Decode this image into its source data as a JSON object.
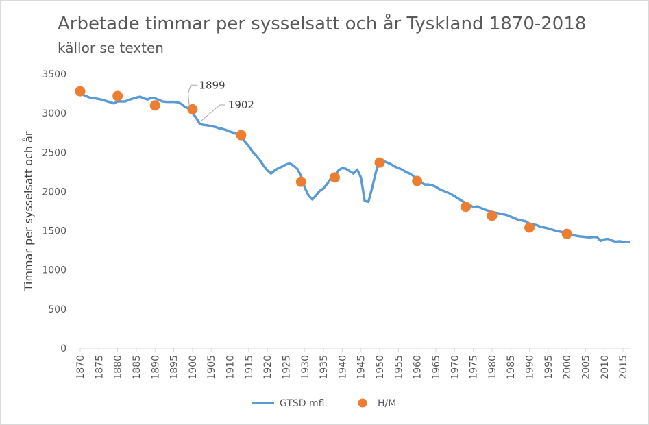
{
  "chart_data": {
    "type": "line",
    "title": "Arbetade timmar per sysselsatt och år Tyskland 1870-2018",
    "subtitle": "källor se texten",
    "xlabel": "",
    "ylabel": "Timmar per sysselsatt och år",
    "xlim": [
      1870,
      2017
    ],
    "ylim": [
      0,
      3500
    ],
    "grid": false,
    "legend_position": "bottom",
    "x_ticks": [
      1870,
      1875,
      1880,
      1885,
      1890,
      1895,
      1900,
      1905,
      1910,
      1915,
      1920,
      1925,
      1930,
      1935,
      1940,
      1945,
      1950,
      1955,
      1960,
      1965,
      1970,
      1975,
      1980,
      1985,
      1990,
      1995,
      2000,
      2005,
      2010,
      2015
    ],
    "y_ticks": [
      0,
      500,
      1000,
      1500,
      2000,
      2500,
      3000,
      3500
    ],
    "annotations": [
      {
        "text": "1899",
        "x": 1899,
        "y": 3060
      },
      {
        "text": "1902",
        "x": 1902,
        "y": 2870
      }
    ],
    "colors": {
      "gtsd": "#5b9bd5",
      "hm": "#ed7d31"
    },
    "series": [
      {
        "name": "GTSD mfl.",
        "kind": "line",
        "points": [
          [
            1870,
            3260
          ],
          [
            1871,
            3230
          ],
          [
            1872,
            3210
          ],
          [
            1873,
            3190
          ],
          [
            1874,
            3190
          ],
          [
            1875,
            3180
          ],
          [
            1876,
            3170
          ],
          [
            1877,
            3155
          ],
          [
            1878,
            3140
          ],
          [
            1879,
            3125
          ],
          [
            1880,
            3150
          ],
          [
            1881,
            3150
          ],
          [
            1882,
            3150
          ],
          [
            1883,
            3170
          ],
          [
            1884,
            3185
          ],
          [
            1885,
            3200
          ],
          [
            1886,
            3210
          ],
          [
            1887,
            3190
          ],
          [
            1888,
            3175
          ],
          [
            1889,
            3195
          ],
          [
            1890,
            3190
          ],
          [
            1891,
            3170
          ],
          [
            1892,
            3150
          ],
          [
            1893,
            3145
          ],
          [
            1894,
            3145
          ],
          [
            1895,
            3145
          ],
          [
            1896,
            3140
          ],
          [
            1897,
            3120
          ],
          [
            1898,
            3080
          ],
          [
            1899,
            3060
          ],
          [
            1900,
            3000
          ],
          [
            1901,
            2940
          ],
          [
            1902,
            2860
          ],
          [
            1903,
            2850
          ],
          [
            1904,
            2845
          ],
          [
            1905,
            2835
          ],
          [
            1906,
            2825
          ],
          [
            1907,
            2810
          ],
          [
            1908,
            2800
          ],
          [
            1909,
            2785
          ],
          [
            1910,
            2765
          ],
          [
            1911,
            2750
          ],
          [
            1912,
            2730
          ],
          [
            1913,
            2700
          ],
          [
            1914,
            2640
          ],
          [
            1915,
            2580
          ],
          [
            1916,
            2510
          ],
          [
            1917,
            2460
          ],
          [
            1918,
            2400
          ],
          [
            1919,
            2330
          ],
          [
            1920,
            2270
          ],
          [
            1921,
            2230
          ],
          [
            1922,
            2270
          ],
          [
            1923,
            2300
          ],
          [
            1924,
            2320
          ],
          [
            1925,
            2345
          ],
          [
            1926,
            2360
          ],
          [
            1927,
            2330
          ],
          [
            1928,
            2290
          ],
          [
            1929,
            2200
          ],
          [
            1930,
            2050
          ],
          [
            1931,
            1950
          ],
          [
            1932,
            1900
          ],
          [
            1933,
            1950
          ],
          [
            1934,
            2010
          ],
          [
            1935,
            2040
          ],
          [
            1936,
            2100
          ],
          [
            1937,
            2170
          ],
          [
            1938,
            2190
          ],
          [
            1939,
            2270
          ],
          [
            1940,
            2300
          ],
          [
            1941,
            2290
          ],
          [
            1942,
            2260
          ],
          [
            1943,
            2230
          ],
          [
            1944,
            2280
          ],
          [
            1945,
            2180
          ],
          [
            1946,
            1880
          ],
          [
            1947,
            1870
          ],
          [
            1948,
            2050
          ],
          [
            1949,
            2250
          ],
          [
            1950,
            2400
          ],
          [
            1951,
            2390
          ],
          [
            1952,
            2370
          ],
          [
            1953,
            2350
          ],
          [
            1954,
            2320
          ],
          [
            1955,
            2300
          ],
          [
            1956,
            2280
          ],
          [
            1957,
            2250
          ],
          [
            1958,
            2230
          ],
          [
            1959,
            2200
          ],
          [
            1960,
            2160
          ],
          [
            1961,
            2120
          ],
          [
            1962,
            2090
          ],
          [
            1963,
            2090
          ],
          [
            1964,
            2080
          ],
          [
            1965,
            2060
          ],
          [
            1966,
            2030
          ],
          [
            1967,
            2010
          ],
          [
            1968,
            1990
          ],
          [
            1969,
            1970
          ],
          [
            1970,
            1940
          ],
          [
            1971,
            1910
          ],
          [
            1972,
            1880
          ],
          [
            1973,
            1850
          ],
          [
            1974,
            1825
          ],
          [
            1975,
            1800
          ],
          [
            1976,
            1810
          ],
          [
            1977,
            1790
          ],
          [
            1978,
            1770
          ],
          [
            1979,
            1755
          ],
          [
            1980,
            1740
          ],
          [
            1981,
            1730
          ],
          [
            1982,
            1720
          ],
          [
            1983,
            1710
          ],
          [
            1984,
            1700
          ],
          [
            1985,
            1680
          ],
          [
            1986,
            1660
          ],
          [
            1987,
            1640
          ],
          [
            1988,
            1630
          ],
          [
            1989,
            1620
          ],
          [
            1990,
            1590
          ],
          [
            1991,
            1580
          ],
          [
            1992,
            1570
          ],
          [
            1993,
            1550
          ],
          [
            1994,
            1540
          ],
          [
            1995,
            1530
          ],
          [
            1996,
            1515
          ],
          [
            1997,
            1500
          ],
          [
            1998,
            1490
          ],
          [
            1999,
            1480
          ],
          [
            2000,
            1470
          ],
          [
            2001,
            1450
          ],
          [
            2002,
            1440
          ],
          [
            2003,
            1430
          ],
          [
            2004,
            1425
          ],
          [
            2005,
            1420
          ],
          [
            2006,
            1415
          ],
          [
            2007,
            1420
          ],
          [
            2008,
            1420
          ],
          [
            2009,
            1370
          ],
          [
            2010,
            1390
          ],
          [
            2011,
            1395
          ],
          [
            2012,
            1375
          ],
          [
            2013,
            1360
          ],
          [
            2014,
            1365
          ],
          [
            2015,
            1360
          ],
          [
            2016,
            1358
          ],
          [
            2017,
            1355
          ]
        ]
      },
      {
        "name": "H/M",
        "kind": "scatter",
        "points": [
          [
            1870,
            3280
          ],
          [
            1880,
            3220
          ],
          [
            1890,
            3100
          ],
          [
            1900,
            3050
          ],
          [
            1913,
            2720
          ],
          [
            1929,
            2125
          ],
          [
            1938,
            2180
          ],
          [
            1950,
            2370
          ],
          [
            1960,
            2135
          ],
          [
            1973,
            1805
          ],
          [
            1980,
            1690
          ],
          [
            1990,
            1540
          ],
          [
            2000,
            1460
          ]
        ]
      }
    ]
  }
}
